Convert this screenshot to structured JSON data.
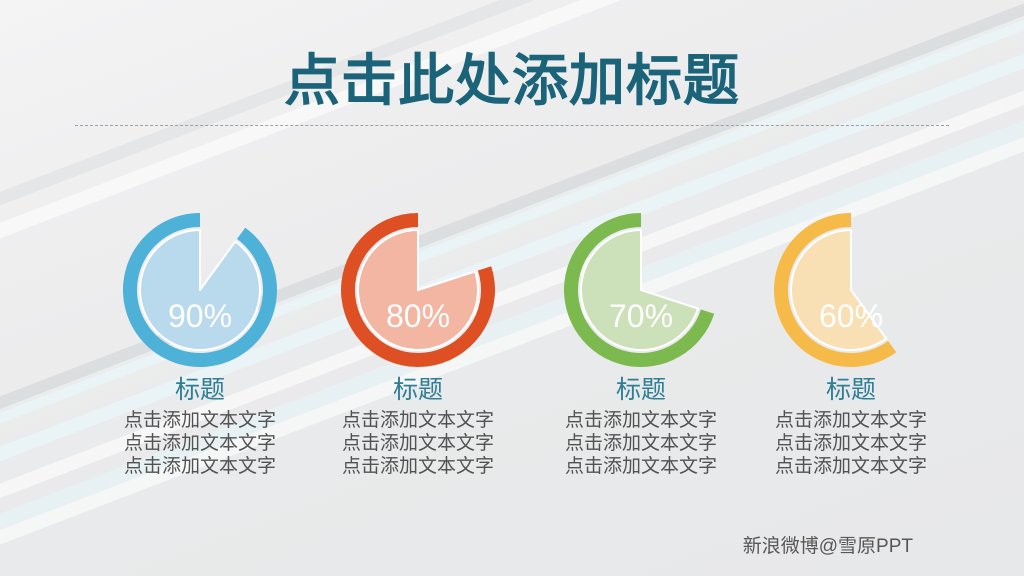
{
  "slide": {
    "title": "点击此处添加标题",
    "watermark": "新浪微博@雪原PPT",
    "title_color": "#1b6379",
    "caption_color": "#2e7e95",
    "body_color": "#525252",
    "watermark_color": "#575757",
    "background_color": "#e9eaeb",
    "divider_color": "#9aa0a3"
  },
  "charts": [
    {
      "percent": 90,
      "percent_label": "90%",
      "ring_color": "#4db1d8",
      "fill_color": "#b9d9ec",
      "title": "标题",
      "lines": [
        "点击添加文本文字",
        "点击添加文本文字",
        "点击添加文本文字"
      ]
    },
    {
      "percent": 80,
      "percent_label": "80%",
      "ring_color": "#de5023",
      "fill_color": "#f3b6a3",
      "title": "标题",
      "lines": [
        "点击添加文本文字",
        "点击添加文本文字",
        "点击添加文本文字"
      ]
    },
    {
      "percent": 70,
      "percent_label": "70%",
      "ring_color": "#7cb94f",
      "fill_color": "#cce0ba",
      "title": "标题",
      "lines": [
        "点击添加文本文字",
        "点击添加文本文字",
        "点击添加文本文字"
      ]
    },
    {
      "percent": 60,
      "percent_label": "60%",
      "ring_color": "#f6ba48",
      "fill_color": "#f8dfb4",
      "title": "标题",
      "lines": [
        "点击添加文本文字",
        "点击添加文本文字",
        "点击添加文本文字"
      ]
    }
  ],
  "chart_data": {
    "type": "pie",
    "title": "点击此处添加标题",
    "legend_position": "none",
    "series": [
      {
        "name": "标题",
        "value": 90,
        "unit": "%",
        "color": "#4db1d8"
      },
      {
        "name": "标题",
        "value": 80,
        "unit": "%",
        "color": "#de5023"
      },
      {
        "name": "标题",
        "value": 70,
        "unit": "%",
        "color": "#7cb94f"
      },
      {
        "name": "标题",
        "value": 60,
        "unit": "%",
        "color": "#f6ba48"
      }
    ],
    "note": "each pie drawn as pac-man: filled share = value%, missing wedge starts at 12 o'clock clockwise"
  }
}
